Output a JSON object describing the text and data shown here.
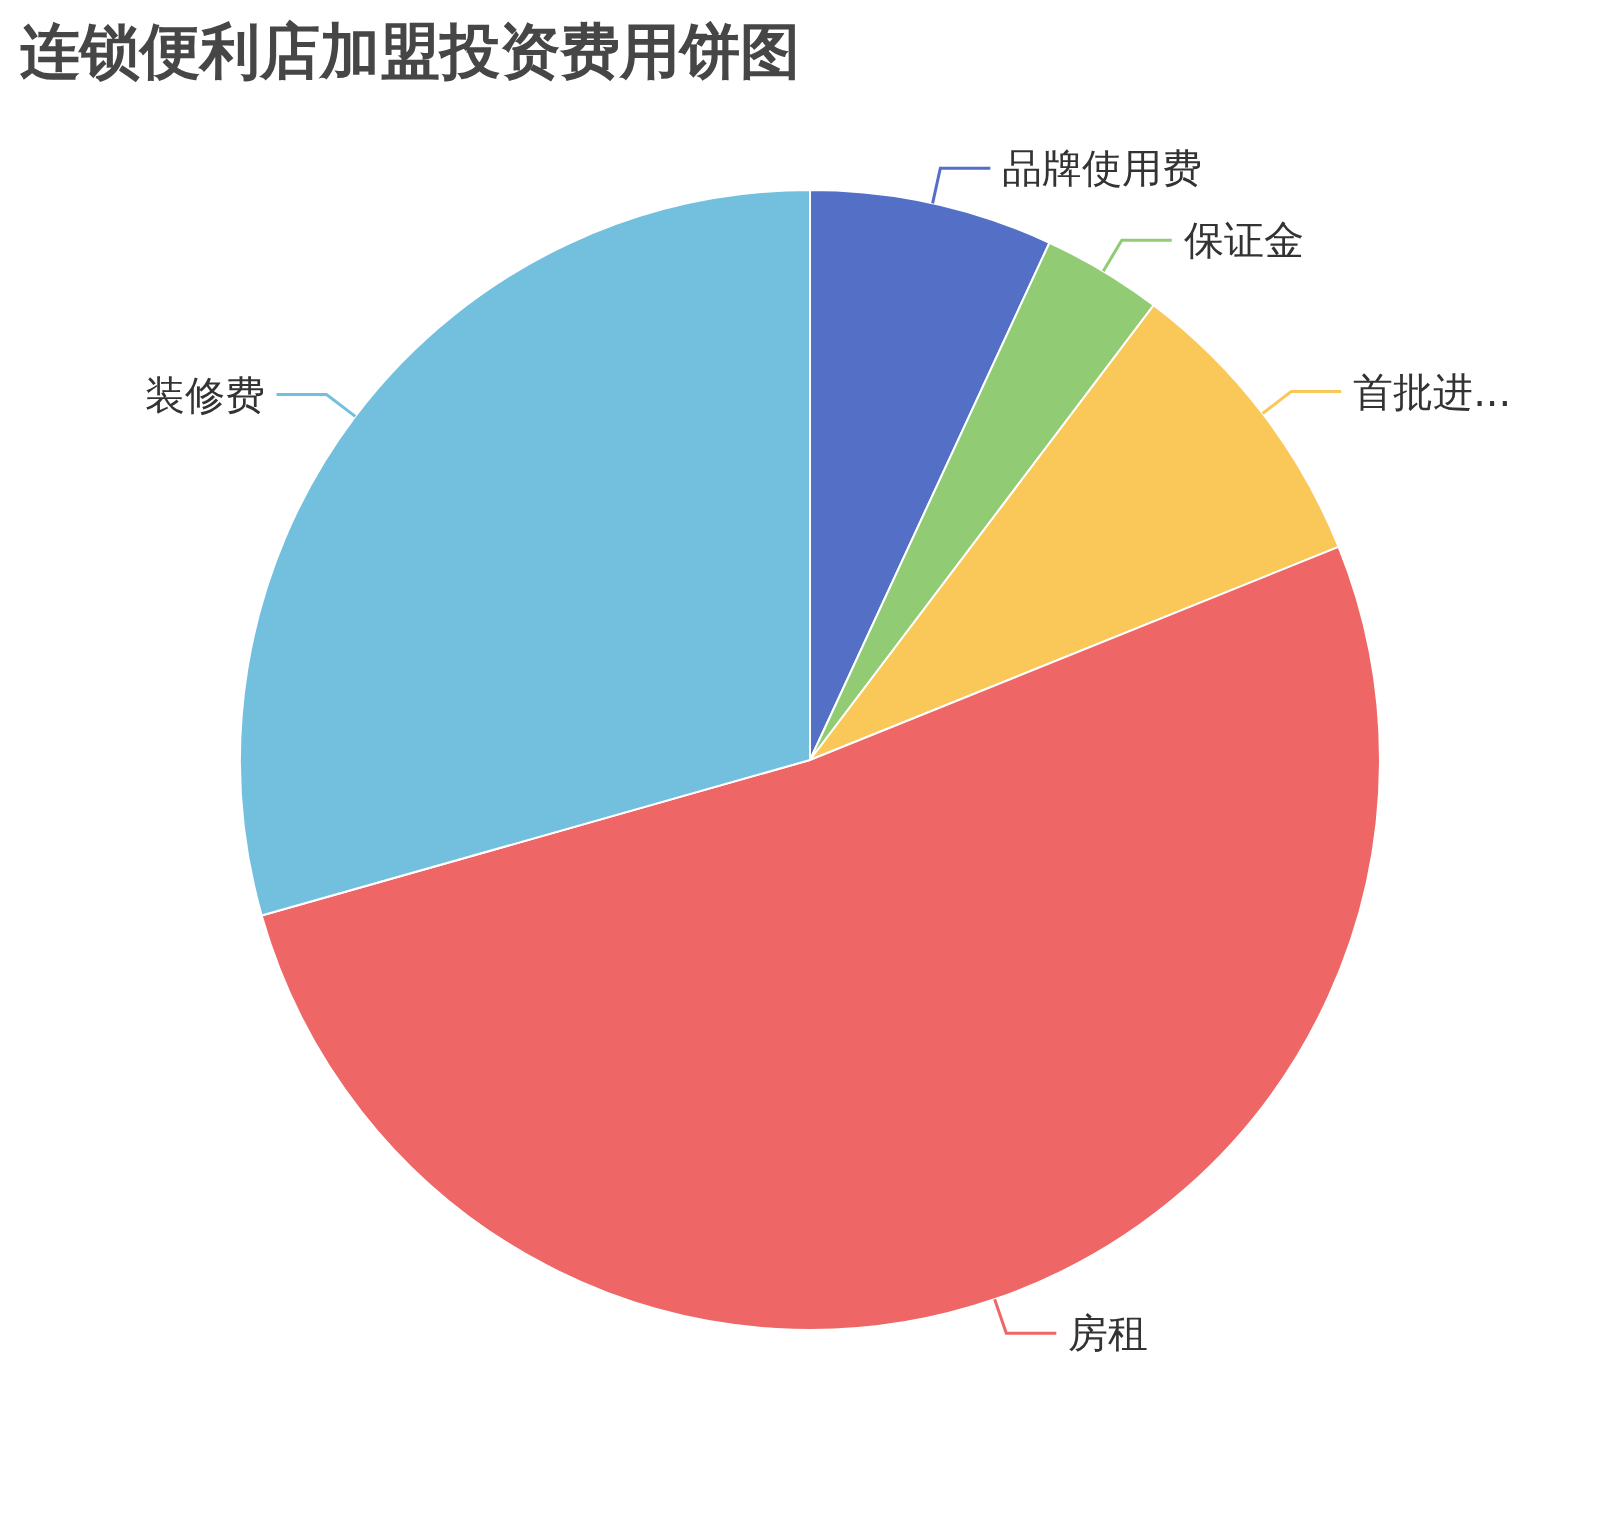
{
  "chart_data": {
    "type": "pie",
    "title": "连锁便利店加盟投资费用饼图",
    "categories": [
      "品牌使用费",
      "保证金",
      "首批进...",
      "房租",
      "装修费"
    ],
    "values": [
      6.9,
      3.4,
      8.6,
      51.7,
      29.4
    ],
    "colors": [
      "#5470c6",
      "#91cc75",
      "#fac858",
      "#ee6666",
      "#73c0de"
    ]
  }
}
